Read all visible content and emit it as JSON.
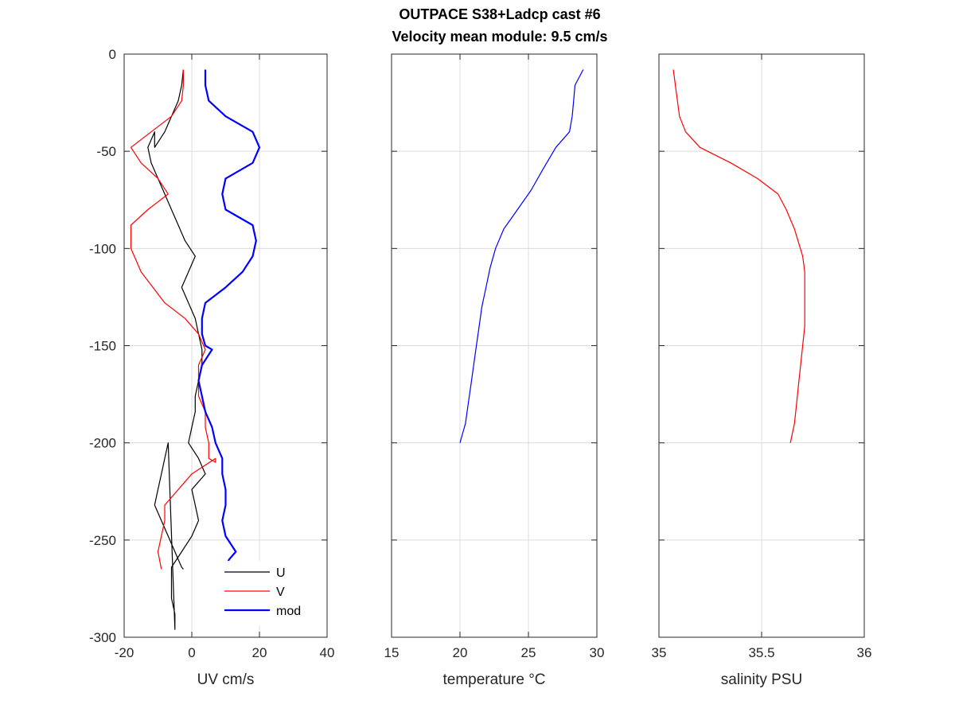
{
  "figure": {
    "title_line1": "OUTPACE S38+Ladcp cast #6",
    "title_line2": "Velocity mean module:  9.5 cm/s"
  },
  "chart_data": [
    {
      "type": "line",
      "xlabel": "UV cm/s",
      "ylabel": "",
      "xlim": [
        -20,
        40
      ],
      "ylim": [
        -300,
        0
      ],
      "xticks": [
        -20,
        0,
        20,
        40
      ],
      "yticks": [
        -300,
        -250,
        -200,
        -150,
        -100,
        -50,
        0
      ],
      "grid": true,
      "legend_position": "bottom-right",
      "series": [
        {
          "name": "U",
          "color": "#000000",
          "x": [
            -2.5,
            -3,
            -4,
            -6,
            -8,
            -11,
            -11,
            -13,
            -12,
            -10,
            -8,
            -6,
            -4,
            -2,
            1,
            -1,
            -3,
            -1,
            1,
            2,
            3,
            3,
            2,
            1,
            1,
            0,
            -1,
            2,
            4,
            0,
            1,
            2,
            0,
            -3,
            -6,
            -6,
            -6,
            -5,
            -5,
            -7,
            -8,
            -9,
            -10,
            -11,
            -9,
            -7,
            -5,
            -4,
            -3,
            -2.5
          ],
          "y": [
            -8,
            -16,
            -24,
            -32,
            -40,
            -48,
            -40,
            -48,
            -56,
            -64,
            -72,
            -80,
            -88,
            -96,
            -104,
            -112,
            -120,
            -128,
            -136,
            -144,
            -152,
            -160,
            -168,
            -176,
            -184,
            -192,
            -200,
            -208,
            -216,
            -224,
            -232,
            -240,
            -248,
            -256,
            -264,
            -272,
            -280,
            -288,
            -296,
            -200,
            -208,
            -216,
            -224,
            -232,
            -240,
            -248,
            -256,
            -260,
            -264,
            -265
          ]
        },
        {
          "name": "V",
          "color": "#ff0000",
          "x": [
            -2.5,
            -2.5,
            -3,
            -6,
            -12,
            -18,
            -15,
            -10,
            -7,
            -13,
            -18,
            -18,
            -18,
            -15,
            -8,
            -2,
            2,
            4,
            2,
            2,
            4,
            4,
            5,
            5,
            7,
            7,
            0,
            -8,
            -8,
            -10,
            -9
          ],
          "y": [
            -8,
            -16,
            -24,
            -32,
            -40,
            -48,
            -56,
            -64,
            -72,
            -80,
            -88,
            -96,
            -100,
            -112,
            -128,
            -136,
            -144,
            -152,
            -160,
            -176,
            -184,
            -192,
            -200,
            -208,
            -210,
            -208,
            -216,
            -232,
            -240,
            -256,
            -265
          ]
        },
        {
          "name": "mod",
          "color": "#0000ff",
          "x": [
            4,
            4,
            5,
            10,
            18,
            20,
            18,
            10,
            9,
            10,
            18,
            19,
            18,
            15,
            10,
            4,
            3,
            3,
            4,
            6,
            3,
            2,
            3,
            4,
            6,
            7,
            9,
            9,
            10,
            10,
            9,
            10,
            13,
            11,
            10,
            11,
            11,
            10,
            9
          ],
          "y": [
            -8,
            -16,
            -24,
            -32,
            -40,
            -48,
            -56,
            -64,
            -72,
            -80,
            -88,
            -96,
            -104,
            -112,
            -120,
            -128,
            -136,
            -144,
            -150,
            -152,
            -160,
            -168,
            -176,
            -184,
            -192,
            -200,
            -208,
            -216,
            -224,
            -232,
            -240,
            -248,
            -256,
            -260,
            -264,
            -265,
            -270,
            -274,
            -265
          ]
        }
      ]
    },
    {
      "type": "line",
      "xlabel": "temperature °C",
      "ylabel": "",
      "xlim": [
        15,
        30
      ],
      "ylim": [
        -300,
        0
      ],
      "xticks": [
        15,
        20,
        25,
        30
      ],
      "yticks": [
        -300,
        -250,
        -200,
        -150,
        -100,
        -50,
        0
      ],
      "grid": true,
      "series": [
        {
          "name": "",
          "color": "#0000ff",
          "x": [
            29.0,
            28.4,
            28.3,
            28.2,
            28.0,
            27.0,
            26.0,
            25.2,
            24.2,
            23.2,
            22.6,
            22.2,
            21.9,
            21.6,
            21.4,
            21.2,
            21.0,
            20.8,
            20.6,
            20.4,
            20.2,
            20.0
          ],
          "y": [
            -8,
            -16,
            -24,
            -32,
            -40,
            -48,
            -60,
            -70,
            -80,
            -90,
            -100,
            -110,
            -120,
            -130,
            -140,
            -150,
            -160,
            -170,
            -180,
            -190,
            -195,
            -200
          ]
        }
      ]
    },
    {
      "type": "line",
      "xlabel": "salinity PSU",
      "ylabel": "",
      "xlim": [
        35,
        36
      ],
      "ylim": [
        -300,
        0
      ],
      "xticks": [
        35,
        35.5,
        36
      ],
      "yticks": [
        -300,
        -250,
        -200,
        -150,
        -100,
        -50,
        0
      ],
      "grid": true,
      "series": [
        {
          "name": "",
          "color": "#ff0000",
          "x": [
            35.07,
            35.08,
            35.09,
            35.1,
            35.13,
            35.2,
            35.35,
            35.48,
            35.58,
            35.62,
            35.66,
            35.7,
            35.71,
            35.71,
            35.71,
            35.71,
            35.7,
            35.69,
            35.68,
            35.67,
            35.66,
            35.65,
            35.64
          ],
          "y": [
            -8,
            -16,
            -24,
            -32,
            -40,
            -48,
            -56,
            -64,
            -72,
            -80,
            -90,
            -104,
            -112,
            -120,
            -130,
            -140,
            -150,
            -160,
            -170,
            -180,
            -190,
            -195,
            -200
          ]
        }
      ]
    }
  ]
}
